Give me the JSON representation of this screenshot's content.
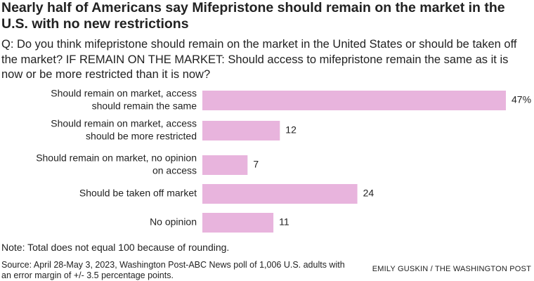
{
  "chart_data": {
    "type": "bar",
    "orientation": "horizontal",
    "title": "Nearly half of Americans say Mifepristone should remain on the market in the U.S. with no new restrictions",
    "subtitle": "Q: Do you think mifepristone should remain on the market in the United States or should be taken off the market? IF REMAIN ON THE MARKET: Should access to mifepristone remain the same as it is now or be more restricted than it is now?",
    "categories": [
      [
        "Should remain on market, access",
        "should remain the same"
      ],
      [
        "Should remain on market, access",
        "should be more restricted"
      ],
      [
        "Should remain on market, no opinion",
        "on access"
      ],
      [
        "Should be taken off market"
      ],
      [
        "No opinion"
      ]
    ],
    "values": [
      47,
      12,
      7,
      24,
      11
    ],
    "value_labels": [
      "47%",
      "12",
      "7",
      "24",
      "11"
    ],
    "color": "#e8b4dd",
    "note": "Note: Total does not equal 100 because of rounding.",
    "source": "Source: April 28-May 3, 2023, Washington Post-ABC News poll of 1,006 U.S. adults with an error margin of +/- 3.5 percentage points.",
    "credit": "EMILY GUSKIN / THE WASHINGTON POST"
  }
}
